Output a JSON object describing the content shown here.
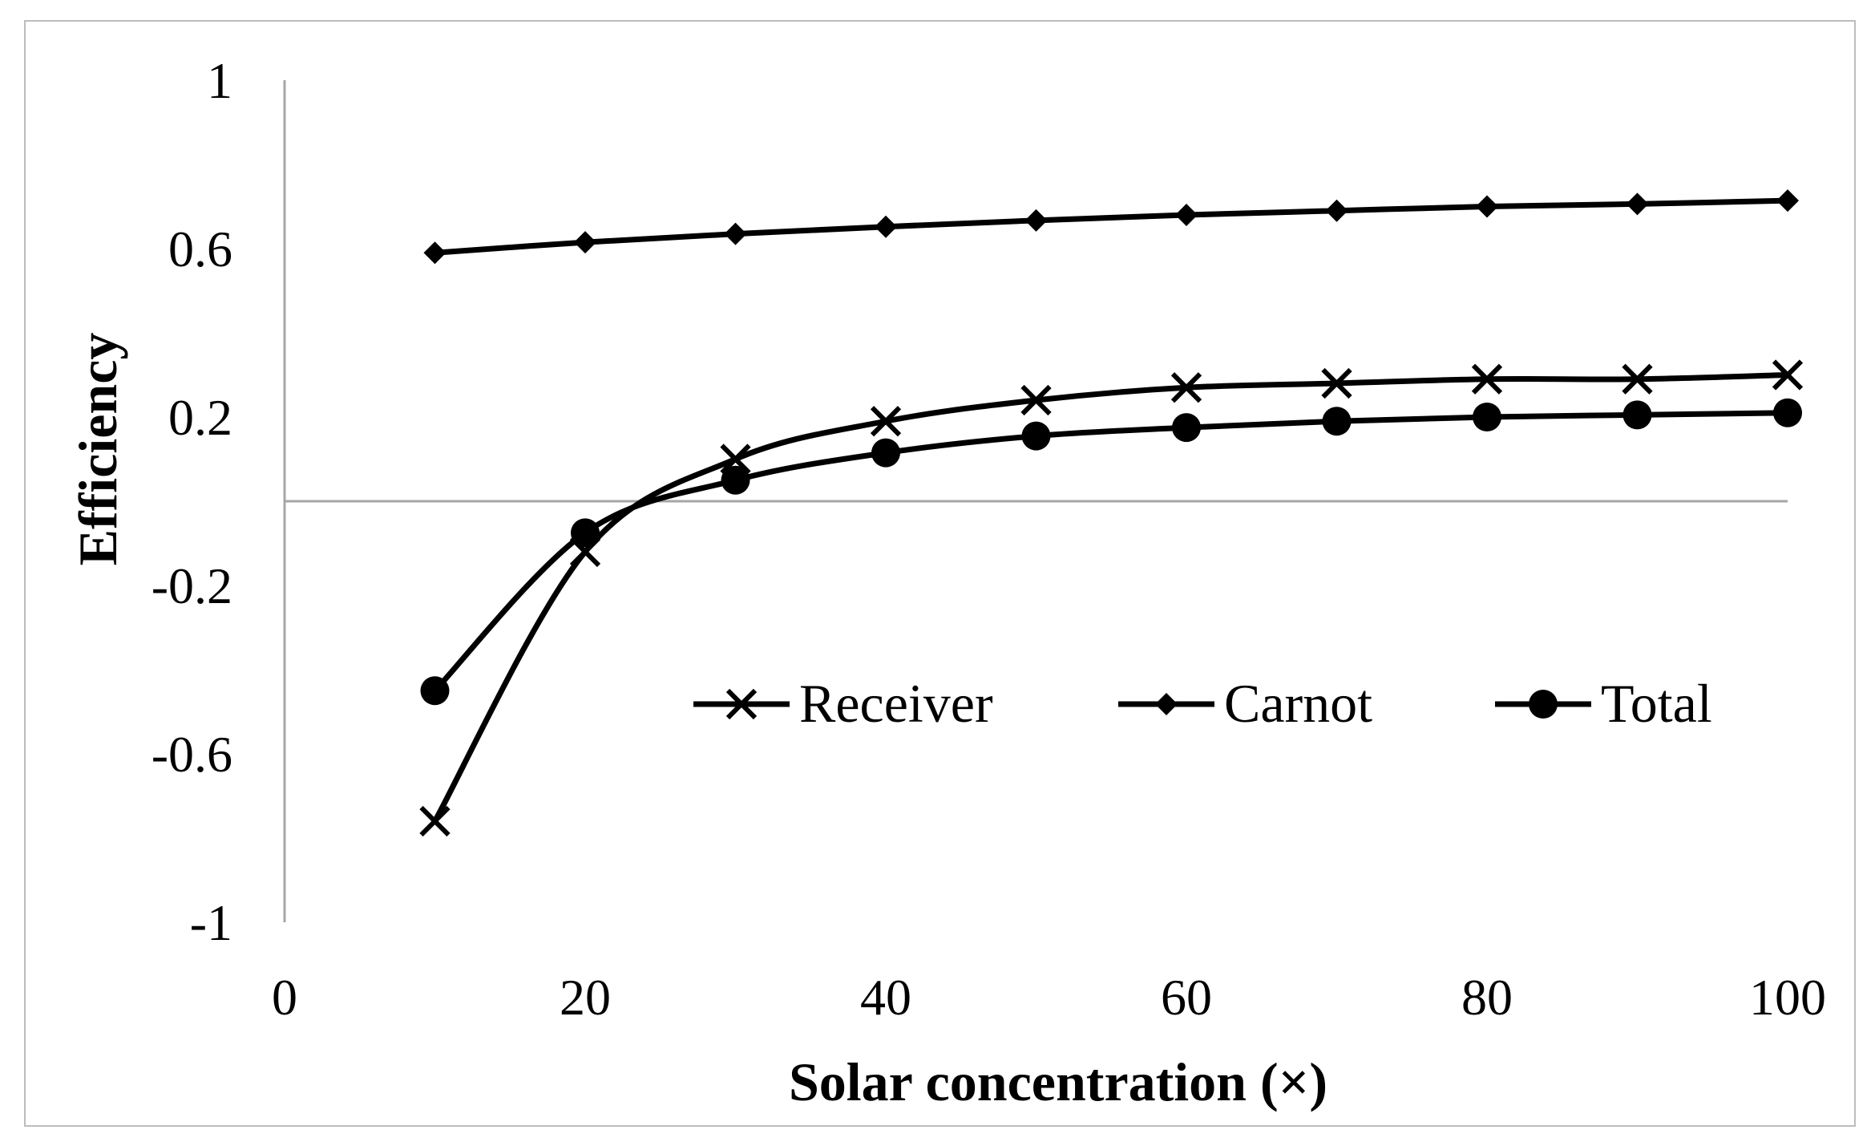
{
  "chart_data": {
    "type": "line",
    "title": "",
    "xlabel": "Solar concentration  (×)",
    "ylabel": "Efficiency",
    "xlim": [
      0,
      100
    ],
    "ylim": [
      -1,
      1
    ],
    "xticks": [
      "0",
      "20",
      "40",
      "60",
      "80",
      "100"
    ],
    "yticks": [
      "1",
      "0.6",
      "0.2",
      "-0.2",
      "-0.6",
      "-1"
    ],
    "ytick_values": [
      1,
      0.6,
      0.2,
      -0.2,
      -0.6,
      -1
    ],
    "xtick_values": [
      0,
      20,
      40,
      60,
      80,
      100
    ],
    "x": [
      10,
      20,
      30,
      40,
      50,
      60,
      70,
      80,
      90,
      100
    ],
    "series": [
      {
        "name": "Receiver",
        "marker": "x",
        "values": [
          -0.76,
          -0.12,
          0.1,
          0.19,
          0.24,
          0.27,
          0.28,
          0.29,
          0.29,
          0.3
        ]
      },
      {
        "name": "Carnot",
        "marker": "diamond",
        "values": [
          0.59,
          0.615,
          0.635,
          0.652,
          0.667,
          0.68,
          0.69,
          0.7,
          0.706,
          0.714
        ]
      },
      {
        "name": "Total",
        "marker": "circle",
        "values": [
          -0.45,
          -0.075,
          0.05,
          0.115,
          0.155,
          0.175,
          0.19,
          0.2,
          0.205,
          0.21
        ]
      }
    ],
    "legend_position": "lower-right",
    "grid": false
  },
  "colors": {
    "series": "#000000",
    "axis": "#a6a6a6",
    "frame": "#bdbdbd",
    "background": "#ffffff"
  }
}
